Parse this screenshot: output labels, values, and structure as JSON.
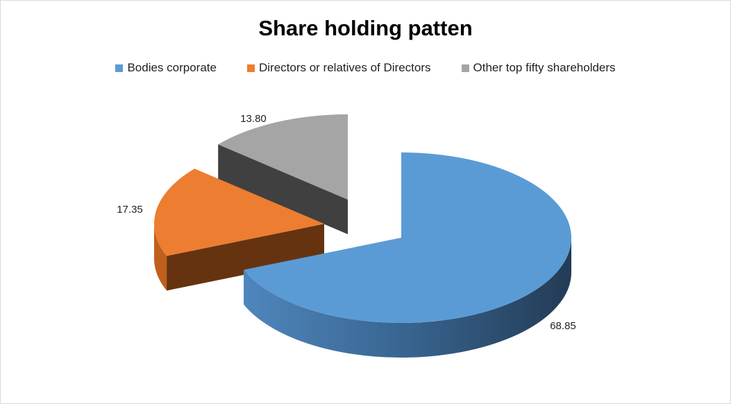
{
  "chart_data": {
    "type": "pie",
    "subtype": "3d-exploded",
    "title": "Share holding patten",
    "legend_position": "top",
    "slices": [
      {
        "name": "Bodies corporate",
        "value": 68.85,
        "label": "68.85",
        "color": "#5b9bd5"
      },
      {
        "name": "Directors or relatives of Directors",
        "value": 17.35,
        "label": "17.35",
        "color": "#ed7d31"
      },
      {
        "name": "Other top fifty shareholders",
        "value": 13.8,
        "label": "13.80",
        "color": "#a5a5a5"
      }
    ]
  }
}
